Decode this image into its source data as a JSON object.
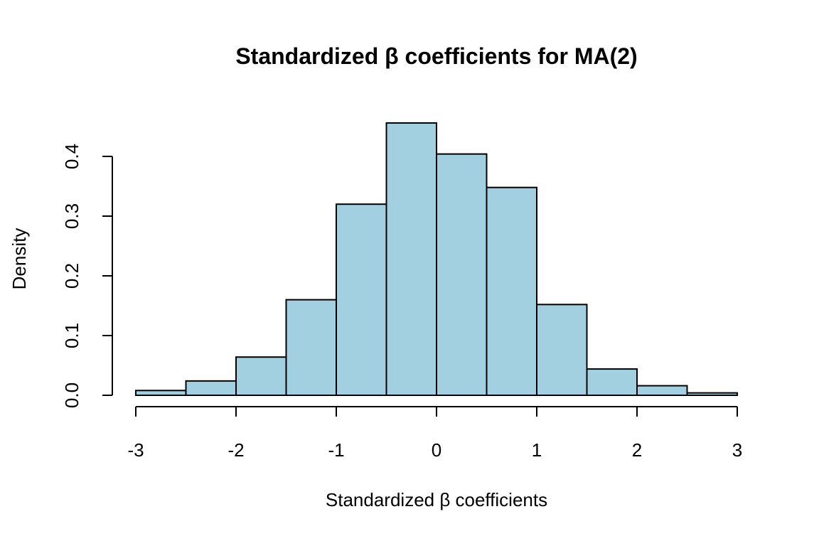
{
  "chart_data": {
    "type": "bar",
    "title": "Standardized β coefficients for MA(2)",
    "xlabel": "Standardized β coefficients",
    "ylabel": "Density",
    "bins": [
      {
        "from": -3.0,
        "to": -2.5,
        "density": 0.008
      },
      {
        "from": -2.5,
        "to": -2.0,
        "density": 0.024
      },
      {
        "from": -2.0,
        "to": -1.5,
        "density": 0.064
      },
      {
        "from": -1.5,
        "to": -1.0,
        "density": 0.16
      },
      {
        "from": -1.0,
        "to": -0.5,
        "density": 0.32
      },
      {
        "from": -0.5,
        "to": 0.0,
        "density": 0.456
      },
      {
        "from": 0.0,
        "to": 0.5,
        "density": 0.404
      },
      {
        "from": 0.5,
        "to": 1.0,
        "density": 0.348
      },
      {
        "from": 1.0,
        "to": 1.5,
        "density": 0.152
      },
      {
        "from": 1.5,
        "to": 2.0,
        "density": 0.044
      },
      {
        "from": 2.0,
        "to": 2.5,
        "density": 0.016
      },
      {
        "from": 2.5,
        "to": 3.0,
        "density": 0.004
      }
    ],
    "xlim": [
      -3,
      3
    ],
    "ylim": [
      0,
      0.4
    ],
    "x_ticks": [
      "-3",
      "-2",
      "-1",
      "0",
      "1",
      "2",
      "3"
    ],
    "y_ticks": [
      "0.0",
      "0.1",
      "0.2",
      "0.3",
      "0.4"
    ],
    "bar_color": "#a2d0e1",
    "grid": false,
    "legend": "none"
  }
}
